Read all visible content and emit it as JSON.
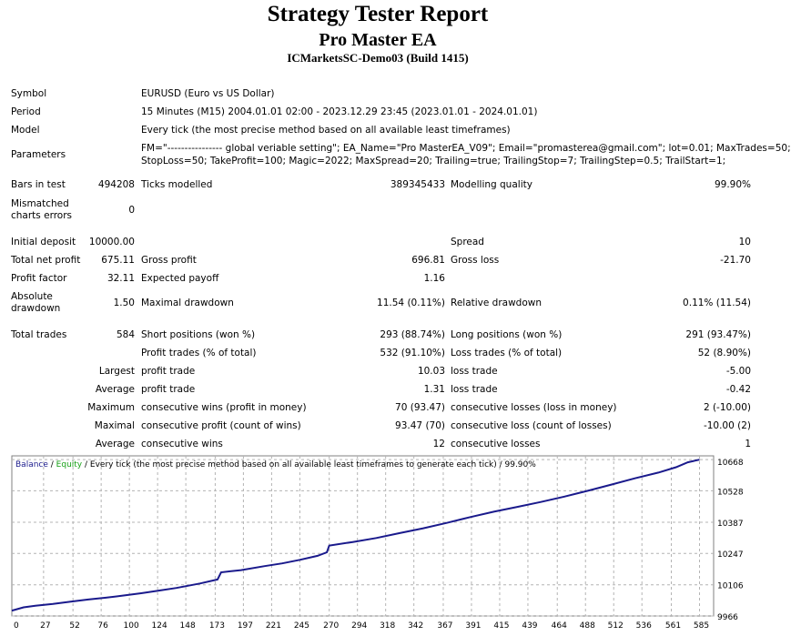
{
  "header": {
    "title": "Strategy Tester Report",
    "subtitle": "Pro Master EA",
    "server": "ICMarketsSC-Demo03 (Build 1415)"
  },
  "info": {
    "symbol_label": "Symbol",
    "symbol_value": "EURUSD (Euro vs US Dollar)",
    "period_label": "Period",
    "period_value": "15 Minutes (M15) 2004.01.01 02:00 - 2023.12.29 23:45 (2023.01.01 - 2024.01.01)",
    "model_label": "Model",
    "model_value": "Every tick (the most precise method based on all available least timeframes)",
    "parameters_label": "Parameters",
    "parameters_line1": "FM=\"---------------- global veriable setting\"; EA_Name=\"Pro MasterEA_V09\"; Email=\"promasterea@gmail.com\"; lot=0.01; MaxTrades=50;",
    "parameters_line2": "StopLoss=50; TakeProfit=100; Magic=2022; MaxSpread=20; Trailing=true; TrailingStop=7; TrailingStep=0.5; TrailStart=1;"
  },
  "stats": {
    "bars_label": "Bars in test",
    "bars_value": "494208",
    "ticks_label": "Ticks modelled",
    "ticks_value": "389345433",
    "quality_label": "Modelling quality",
    "quality_value": "99.90%",
    "mismatch_label_1": "Mismatched",
    "mismatch_label_2": "charts errors",
    "mismatch_value": "0",
    "deposit_label": "Initial deposit",
    "deposit_value": "10000.00",
    "spread_label": "Spread",
    "spread_value": "10",
    "net_label": "Total net profit",
    "net_value": "675.11",
    "gross_profit_label": "Gross profit",
    "gross_profit_value": "696.81",
    "gross_loss_label": "Gross loss",
    "gross_loss_value": "-21.70",
    "pf_label": "Profit factor",
    "pf_value": "32.11",
    "payoff_label": "Expected payoff",
    "payoff_value": "1.16",
    "abs_dd_label_1": "Absolute",
    "abs_dd_label_2": "drawdown",
    "abs_dd_value": "1.50",
    "max_dd_label": "Maximal drawdown",
    "max_dd_value": "11.54 (0.11%)",
    "rel_dd_label": "Relative drawdown",
    "rel_dd_value": "0.11% (11.54)",
    "trades_label": "Total trades",
    "trades_value": "584",
    "short_label": "Short positions (won %)",
    "short_value": "293 (88.74%)",
    "long_label": "Long positions (won %)",
    "long_value": "291 (93.47%)",
    "profit_trades_label": "Profit trades (% of total)",
    "profit_trades_value": "532 (91.10%)",
    "loss_trades_label": "Loss trades (% of total)",
    "loss_trades_value": "52 (8.90%)",
    "largest_label": "Largest",
    "largest_profit_label": "profit trade",
    "largest_profit_value": "10.03",
    "largest_loss_label": "loss trade",
    "largest_loss_value": "-5.00",
    "average_label": "Average",
    "average_profit_label": "profit trade",
    "average_profit_value": "1.31",
    "average_loss_label": "loss trade",
    "average_loss_value": "-0.42",
    "maximum_label": "Maximum",
    "max_wins_label": "consecutive wins (profit in money)",
    "max_wins_value": "70 (93.47)",
    "max_losses_label": "consecutive losses (loss in money)",
    "max_losses_value": "2 (-10.00)",
    "maximal_label": "Maximal",
    "maximal_profit_label": "consecutive profit (count of wins)",
    "maximal_profit_value": "93.47 (70)",
    "maximal_loss_label": "consecutive loss (count of losses)",
    "maximal_loss_value": "-10.00 (2)",
    "avg2_label": "Average",
    "avg_wins_label": "consecutive wins",
    "avg_wins_value": "12",
    "avg_losses_label": "consecutive losses",
    "avg_losses_value": "1"
  },
  "chart_data": {
    "type": "line",
    "legend": {
      "balance": "Balance",
      "sep1": " / ",
      "equity": "Equity",
      "rest": " / Every tick (the most precise method based on all available least timeframes to generate each tick) / 99.90%"
    },
    "colors": {
      "balance": "#1a1a8c",
      "equity": "#16a016",
      "grid": "#b4b4b4"
    },
    "xlim": [
      0,
      597
    ],
    "ylim": [
      9966,
      10685
    ],
    "x_ticks": [
      0,
      27,
      52,
      76,
      100,
      124,
      148,
      173,
      197,
      221,
      245,
      270,
      294,
      318,
      342,
      367,
      391,
      415,
      439,
      464,
      488,
      512,
      536,
      561,
      585
    ],
    "y_ticks": [
      9966,
      10106,
      10247,
      10387,
      10528,
      10668
    ],
    "grid": true,
    "series": [
      {
        "name": "Balance",
        "x": [
          0,
          10,
          20,
          35,
          50,
          65,
          80,
          95,
          110,
          125,
          140,
          160,
          175,
          178,
          195,
          215,
          230,
          245,
          260,
          268,
          270,
          290,
          310,
          330,
          350,
          370,
          390,
          410,
          430,
          450,
          470,
          490,
          510,
          530,
          550,
          565,
          575,
          585
        ],
        "y": [
          9990,
          10005,
          10012,
          10020,
          10030,
          10040,
          10048,
          10058,
          10068,
          10080,
          10092,
          10112,
          10130,
          10162,
          10172,
          10190,
          10202,
          10218,
          10236,
          10252,
          10282,
          10298,
          10316,
          10338,
          10360,
          10384,
          10410,
          10434,
          10456,
          10478,
          10502,
          10528,
          10556,
          10584,
          10610,
          10634,
          10656,
          10668
        ]
      }
    ]
  }
}
